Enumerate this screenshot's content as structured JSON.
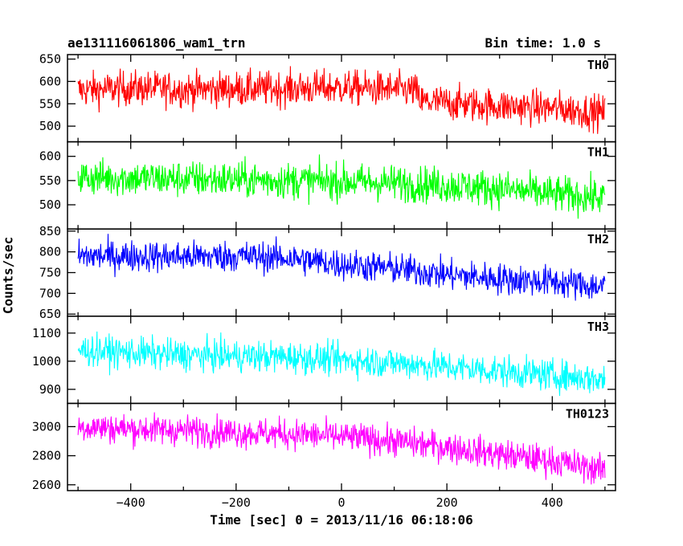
{
  "header": {
    "title_left": "ae131116061806_wam1_trn",
    "title_right": "Bin time: 1.0 s"
  },
  "chart_data": {
    "type": "line",
    "title": "ae131116061806_wam1_trn",
    "subtitle": "Bin time: 1.0 s",
    "xlabel": "Time [sec] 0 = 2013/11/16 06:18:06",
    "ylabel": "Counts/sec",
    "xlim": [
      -520,
      520
    ],
    "x_ticks": [
      -400,
      -200,
      0,
      200,
      400
    ],
    "x_tick_labels": [
      "−400",
      "−200",
      "0",
      "200",
      "400"
    ],
    "grid": false,
    "panels": [
      {
        "name": "TH0",
        "color": "#ff0000",
        "ylim": [
          465,
          660
        ],
        "y_ticks": [
          500,
          550,
          600,
          650
        ],
        "points": [
          [
            -500,
            580
          ],
          [
            -400,
            585
          ],
          [
            -300,
            582
          ],
          [
            -200,
            583
          ],
          [
            -100,
            584
          ],
          [
            0,
            586
          ],
          [
            100,
            582
          ],
          [
            140,
            580
          ],
          [
            150,
            555
          ],
          [
            200,
            552
          ],
          [
            300,
            545
          ],
          [
            400,
            540
          ],
          [
            500,
            530
          ]
        ],
        "noise": 28
      },
      {
        "name": "TH1",
        "color": "#00ff00",
        "ylim": [
          450,
          630
        ],
        "y_ticks": [
          500,
          550,
          600
        ],
        "points": [
          [
            -500,
            557
          ],
          [
            -400,
            555
          ],
          [
            -300,
            553
          ],
          [
            -200,
            552
          ],
          [
            -100,
            550
          ],
          [
            0,
            548
          ],
          [
            100,
            545
          ],
          [
            200,
            540
          ],
          [
            300,
            533
          ],
          [
            400,
            522
          ],
          [
            500,
            515
          ]
        ],
        "noise": 27
      },
      {
        "name": "TH2",
        "color": "#0000ff",
        "ylim": [
          645,
          855
        ],
        "y_ticks": [
          650,
          700,
          750,
          800,
          850
        ],
        "points": [
          [
            -500,
            790
          ],
          [
            -400,
            790
          ],
          [
            -300,
            788
          ],
          [
            -200,
            790
          ],
          [
            -100,
            785
          ],
          [
            0,
            770
          ],
          [
            100,
            760
          ],
          [
            200,
            745
          ],
          [
            300,
            735
          ],
          [
            400,
            728
          ],
          [
            500,
            715
          ]
        ],
        "noise": 27
      },
      {
        "name": "TH3",
        "color": "#00ffff",
        "ylim": [
          850,
          1160
        ],
        "y_ticks": [
          900,
          1000,
          1100
        ],
        "points": [
          [
            -500,
            1040
          ],
          [
            -400,
            1030
          ],
          [
            -300,
            1022
          ],
          [
            -200,
            1018
          ],
          [
            -100,
            1015
          ],
          [
            0,
            1005
          ],
          [
            100,
            995
          ],
          [
            200,
            980
          ],
          [
            300,
            965
          ],
          [
            400,
            950
          ],
          [
            500,
            935
          ]
        ],
        "noise": 40
      },
      {
        "name": "TH0123",
        "color": "#ff00ff",
        "ylim": [
          2560,
          3160
        ],
        "y_ticks": [
          2600,
          2800,
          3000
        ],
        "points": [
          [
            -500,
            3000
          ],
          [
            -400,
            2985
          ],
          [
            -300,
            2975
          ],
          [
            -200,
            2960
          ],
          [
            -100,
            2950
          ],
          [
            0,
            2930
          ],
          [
            100,
            2900
          ],
          [
            200,
            2860
          ],
          [
            300,
            2810
          ],
          [
            400,
            2765
          ],
          [
            500,
            2700
          ]
        ],
        "noise": 75
      }
    ]
  }
}
